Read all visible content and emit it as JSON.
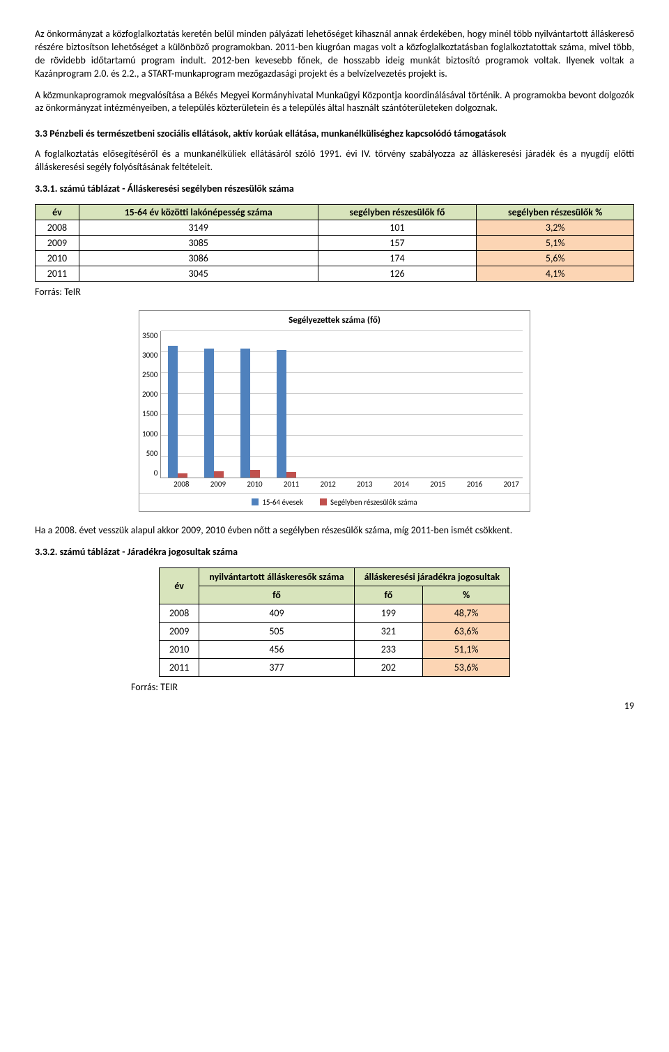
{
  "para1": "Az önkormányzat a közfoglalkoztatás keretén belül minden pályázati lehetőséget kihasznál annak érdekében, hogy minél több nyilvántartott álláskereső részére biztosítson lehetőséget a különböző programokban. 2011-ben kiugróan magas volt a közfoglalkoztatásban foglalkoztatottak száma, mivel több, de rövidebb időtartamú program indult. 2012-ben kevesebb főnek, de hosszabb ideig munkát biztosító programok voltak. Ilyenek voltak a Kazánprogram 2.0. és 2.2., a START-munkaprogram mezőgazdasági projekt és a belvízelvezetés projekt is.",
  "para2": "A közmunkaprogramok megvalósítása a Békés Megyei Kormányhivatal Munkaügyi Központja koordinálásával történik. A programokba bevont dolgozók az önkormányzat intézményeiben, a település közterületein és a település által használt szántóterületeken dolgoznak.",
  "section33_title": "3.3 Pénzbeli és természetbeni szociális ellátások, aktív korúak ellátása, munkanélküliséghez kapcsolódó támogatások",
  "para3": "A foglalkoztatás elősegítéséről és a munkanélküliek ellátásáról szóló 1991. évi IV. törvény szabályozza az álláskeresési járadék és a nyugdíj előtti álláskeresési segély folyósításának feltételeit.",
  "table331_title": "3.3.1. számú táblázat - Álláskeresési segélyben részesülők száma",
  "table331": {
    "headers": [
      "év",
      "15-64 év közötti lakónépesség száma",
      "segélyben részesülők fő",
      "segélyben részesülők %"
    ],
    "rows": [
      [
        "2008",
        "3149",
        "101",
        "3,2%"
      ],
      [
        "2009",
        "3085",
        "157",
        "5,1%"
      ],
      [
        "2010",
        "3086",
        "174",
        "5,6%"
      ],
      [
        "2011",
        "3045",
        "126",
        "4,1%"
      ]
    ]
  },
  "source1": "Forrás: TeIR",
  "chart": {
    "title": "Segélyezettek száma (fő)",
    "ymax": 3500,
    "ystep": 500,
    "yticks": [
      "3500",
      "3000",
      "2500",
      "2000",
      "1500",
      "1000",
      "500",
      "0"
    ],
    "categories": [
      "2008",
      "2009",
      "2010",
      "2011",
      "2012",
      "2013",
      "2014",
      "2015",
      "2016",
      "2017"
    ],
    "series1_name": "15-64 évesek",
    "series1_color": "#4f81bd",
    "series1": [
      3149,
      3085,
      3086,
      3045,
      0,
      0,
      0,
      0,
      0,
      0
    ],
    "series2_name": "Segélyben részesülők száma",
    "series2_color": "#c0504d",
    "series2": [
      101,
      157,
      174,
      126,
      0,
      0,
      0,
      0,
      0,
      0
    ]
  },
  "para4": "Ha a 2008. évet vesszük alapul akkor 2009, 2010 évben nőtt a segélyben részesülők száma, míg 2011-ben ismét csökkent.",
  "table332_title": "3.3.2. számú táblázat - Járadékra jogosultak száma",
  "table332": {
    "head_row1": [
      "év",
      "nyilvántartott álláskeresők száma",
      "álláskeresési járadékra jogosultak"
    ],
    "head_row2": [
      "fő",
      "fő",
      "%"
    ],
    "rows": [
      [
        "2008",
        "409",
        "199",
        "48,7%"
      ],
      [
        "2009",
        "505",
        "321",
        "63,6%"
      ],
      [
        "2010",
        "456",
        "233",
        "51,1%"
      ],
      [
        "2011",
        "377",
        "202",
        "53,6%"
      ]
    ]
  },
  "source2": "Forrás: TEIR",
  "page_number": "19"
}
